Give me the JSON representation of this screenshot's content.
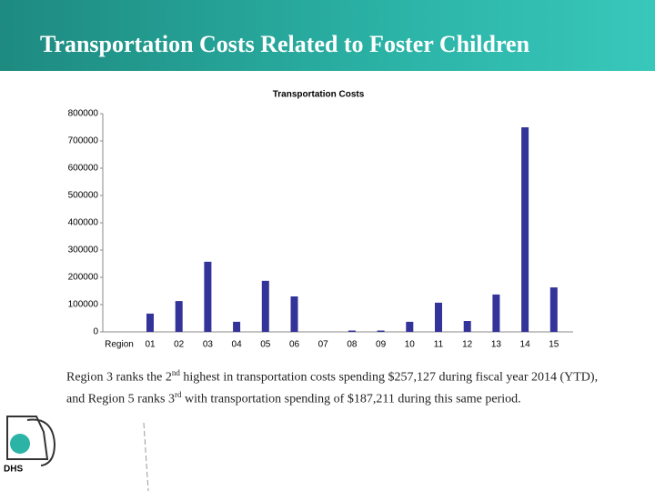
{
  "slide": {
    "title": "Transportation Costs Related to Foster Children",
    "caption": [
      "Region 3 ranks the 2",
      "nd",
      " highest in transportation costs spending $257,127 during fiscal year 2014 (YTD), and Region 5 ranks 3",
      "rd",
      " with transportation spending of $187,211 during this same period."
    ],
    "logo": "DHS"
  },
  "chart_data": {
    "type": "bar",
    "title": "Transportation Costs",
    "x_label": "Region",
    "categories": [
      "01",
      "02",
      "03",
      "04",
      "05",
      "06",
      "07",
      "08",
      "09",
      "10",
      "11",
      "12",
      "13",
      "14",
      "15"
    ],
    "values": [
      67000,
      113000,
      257127,
      37000,
      187211,
      130000,
      0,
      5000,
      5000,
      37000,
      107000,
      40000,
      137000,
      750000,
      163000
    ],
    "color": "#333399",
    "ylim": [
      0,
      800000
    ],
    "yticks": [
      0,
      100000,
      200000,
      300000,
      400000,
      500000,
      600000,
      700000,
      800000
    ],
    "grid": false
  }
}
